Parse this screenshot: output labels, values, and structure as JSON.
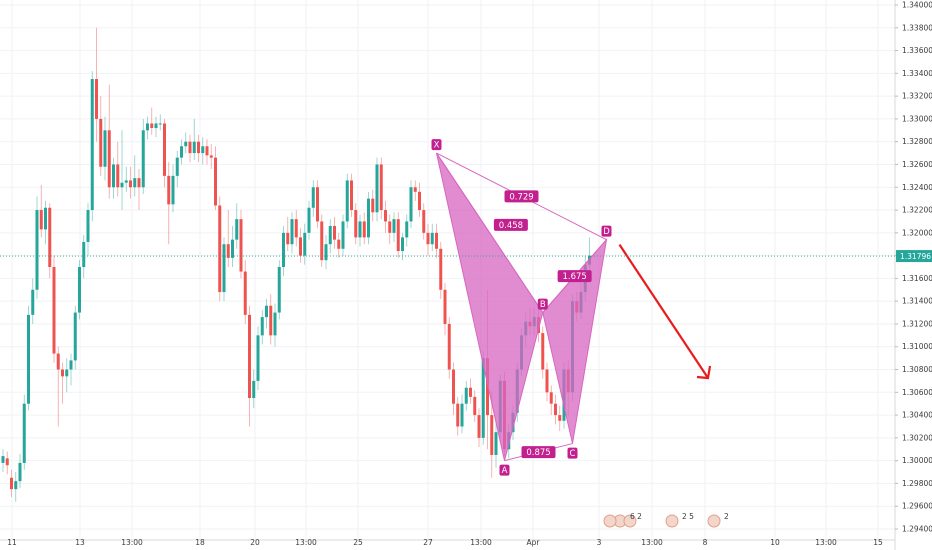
{
  "chart_data": {
    "type": "candlestick",
    "ylim": [
      1.294,
      1.34
    ],
    "y_ticks": [
      "1.34000",
      "1.33800",
      "1.33600",
      "1.33400",
      "1.33200",
      "1.33000",
      "1.32800",
      "1.32600",
      "1.32400",
      "1.32200",
      "1.32000",
      "1.31800",
      "1.31600",
      "1.31400",
      "1.31200",
      "1.31000",
      "1.30800",
      "1.30600",
      "1.30400",
      "1.30200",
      "1.30000",
      "1.29800",
      "1.29600",
      "1.29400"
    ],
    "x_ticks": [
      "11",
      "13",
      "13:00",
      "18",
      "20",
      "13:00",
      "25",
      "27",
      "13:00",
      "Apr",
      "3",
      "13:00",
      "8",
      "10",
      "13:00",
      "15"
    ],
    "current_price": "1.31796",
    "grid": true,
    "colors": {
      "up": "#26a69a",
      "down": "#ef5350",
      "pattern": "#d766c0",
      "label_bg": "#c2208f",
      "arrow": "#e81c1c",
      "price_line": "#26a69a"
    },
    "pattern_points": [
      {
        "label": "X",
        "index": 102,
        "price": 1.327
      },
      {
        "label": "A",
        "index": 118,
        "price": 1.3
      },
      {
        "label": "B",
        "index": 127,
        "price": 1.313
      },
      {
        "label": "C",
        "index": 134,
        "price": 1.3015
      },
      {
        "label": "D",
        "index": 142,
        "price": 1.3194
      }
    ],
    "ratios": [
      "0.729",
      "0.458",
      "1.675",
      "0.875"
    ],
    "event_badges": [
      "6 2",
      "2 5",
      "2"
    ],
    "candles": [
      {
        "o": 1.2998,
        "c": 1.3004,
        "h": 1.301,
        "l": 1.299
      },
      {
        "o": 1.3002,
        "c": 1.2996,
        "h": 1.3008,
        "l": 1.2988
      },
      {
        "o": 1.2985,
        "c": 1.2975,
        "h": 1.2992,
        "l": 1.2968
      },
      {
        "o": 1.2975,
        "c": 1.2982,
        "h": 1.299,
        "l": 1.2964
      },
      {
        "o": 1.2982,
        "c": 1.2998,
        "h": 1.3006,
        "l": 1.2976
      },
      {
        "o": 1.2998,
        "c": 1.305,
        "h": 1.3058,
        "l": 1.2992
      },
      {
        "o": 1.305,
        "c": 1.3128,
        "h": 1.3136,
        "l": 1.3044
      },
      {
        "o": 1.3128,
        "c": 1.315,
        "h": 1.316,
        "l": 1.312
      },
      {
        "o": 1.315,
        "c": 1.322,
        "h": 1.3232,
        "l": 1.3142
      },
      {
        "o": 1.322,
        "c": 1.3203,
        "h": 1.3242,
        "l": 1.3196
      },
      {
        "o": 1.3203,
        "c": 1.3222,
        "h": 1.3228,
        "l": 1.319
      },
      {
        "o": 1.3222,
        "c": 1.317,
        "h": 1.3226,
        "l": 1.316
      },
      {
        "o": 1.317,
        "c": 1.3094,
        "h": 1.318,
        "l": 1.3086
      },
      {
        "o": 1.3094,
        "c": 1.308,
        "h": 1.31,
        "l": 1.303
      },
      {
        "o": 1.308,
        "c": 1.3074,
        "h": 1.3086,
        "l": 1.305
      },
      {
        "o": 1.3074,
        "c": 1.308,
        "h": 1.309,
        "l": 1.306
      },
      {
        "o": 1.308,
        "c": 1.3088,
        "h": 1.3094,
        "l": 1.3066
      },
      {
        "o": 1.3088,
        "c": 1.313,
        "h": 1.3136,
        "l": 1.308
      },
      {
        "o": 1.313,
        "c": 1.317,
        "h": 1.3176,
        "l": 1.3124
      },
      {
        "o": 1.317,
        "c": 1.3192,
        "h": 1.3198,
        "l": 1.316
      },
      {
        "o": 1.3192,
        "c": 1.322,
        "h": 1.3226,
        "l": 1.318
      },
      {
        "o": 1.322,
        "c": 1.3335,
        "h": 1.3342,
        "l": 1.321
      },
      {
        "o": 1.3335,
        "c": 1.33,
        "h": 1.338,
        "l": 1.328
      },
      {
        "o": 1.33,
        "c": 1.3258,
        "h": 1.332,
        "l": 1.325
      },
      {
        "o": 1.3258,
        "c": 1.329,
        "h": 1.3302,
        "l": 1.3246
      },
      {
        "o": 1.329,
        "c": 1.324,
        "h": 1.333,
        "l": 1.323
      },
      {
        "o": 1.324,
        "c": 1.326,
        "h": 1.3266,
        "l": 1.323
      },
      {
        "o": 1.326,
        "c": 1.324,
        "h": 1.328,
        "l": 1.3232
      },
      {
        "o": 1.324,
        "c": 1.3244,
        "h": 1.329,
        "l": 1.322
      },
      {
        "o": 1.3244,
        "c": 1.3246,
        "h": 1.3258,
        "l": 1.3236
      },
      {
        "o": 1.3246,
        "c": 1.324,
        "h": 1.3258,
        "l": 1.323
      },
      {
        "o": 1.324,
        "c": 1.3248,
        "h": 1.3268,
        "l": 1.3232
      },
      {
        "o": 1.3248,
        "c": 1.324,
        "h": 1.3256,
        "l": 1.322
      },
      {
        "o": 1.324,
        "c": 1.329,
        "h": 1.33,
        "l": 1.3234
      },
      {
        "o": 1.329,
        "c": 1.3296,
        "h": 1.3302,
        "l": 1.3282
      },
      {
        "o": 1.3296,
        "c": 1.3292,
        "h": 1.331,
        "l": 1.3286
      },
      {
        "o": 1.3292,
        "c": 1.3296,
        "h": 1.3302,
        "l": 1.3284
      },
      {
        "o": 1.3296,
        "c": 1.3296,
        "h": 1.3304,
        "l": 1.329
      },
      {
        "o": 1.3296,
        "c": 1.325,
        "h": 1.33,
        "l": 1.324
      },
      {
        "o": 1.325,
        "c": 1.3225,
        "h": 1.3262,
        "l": 1.319
      },
      {
        "o": 1.3225,
        "c": 1.325,
        "h": 1.326,
        "l": 1.3218
      },
      {
        "o": 1.325,
        "c": 1.3266,
        "h": 1.3272,
        "l": 1.324
      },
      {
        "o": 1.3266,
        "c": 1.3276,
        "h": 1.3282,
        "l": 1.326
      },
      {
        "o": 1.3276,
        "c": 1.328,
        "h": 1.3288,
        "l": 1.327
      },
      {
        "o": 1.328,
        "c": 1.327,
        "h": 1.3286,
        "l": 1.3262
      },
      {
        "o": 1.327,
        "c": 1.328,
        "h": 1.33,
        "l": 1.3264
      },
      {
        "o": 1.328,
        "c": 1.327,
        "h": 1.3286,
        "l": 1.3262
      },
      {
        "o": 1.327,
        "c": 1.3276,
        "h": 1.3284,
        "l": 1.326
      },
      {
        "o": 1.3276,
        "c": 1.3268,
        "h": 1.3282,
        "l": 1.326
      },
      {
        "o": 1.3268,
        "c": 1.3266,
        "h": 1.3278,
        "l": 1.3256
      },
      {
        "o": 1.3266,
        "c": 1.3224,
        "h": 1.3276,
        "l": 1.322
      },
      {
        "o": 1.3224,
        "c": 1.3148,
        "h": 1.3232,
        "l": 1.314
      },
      {
        "o": 1.3148,
        "c": 1.319,
        "h": 1.3196,
        "l": 1.314
      },
      {
        "o": 1.319,
        "c": 1.3178,
        "h": 1.322,
        "l": 1.317
      },
      {
        "o": 1.3178,
        "c": 1.3194,
        "h": 1.3206,
        "l": 1.317
      },
      {
        "o": 1.3194,
        "c": 1.3212,
        "h": 1.3226,
        "l": 1.3186
      },
      {
        "o": 1.3212,
        "c": 1.3166,
        "h": 1.322,
        "l": 1.316
      },
      {
        "o": 1.3166,
        "c": 1.3128,
        "h": 1.3176,
        "l": 1.312
      },
      {
        "o": 1.3128,
        "c": 1.3055,
        "h": 1.3136,
        "l": 1.303
      },
      {
        "o": 1.3055,
        "c": 1.307,
        "h": 1.308,
        "l": 1.3046
      },
      {
        "o": 1.307,
        "c": 1.311,
        "h": 1.3118,
        "l": 1.3062
      },
      {
        "o": 1.311,
        "c": 1.3126,
        "h": 1.3132,
        "l": 1.3102
      },
      {
        "o": 1.3126,
        "c": 1.3136,
        "h": 1.3142,
        "l": 1.3116
      },
      {
        "o": 1.3136,
        "c": 1.311,
        "h": 1.3146,
        "l": 1.3102
      },
      {
        "o": 1.311,
        "c": 1.313,
        "h": 1.3138,
        "l": 1.31
      },
      {
        "o": 1.313,
        "c": 1.317,
        "h": 1.3176,
        "l": 1.3124
      },
      {
        "o": 1.317,
        "c": 1.32,
        "h": 1.3206,
        "l": 1.3162
      },
      {
        "o": 1.32,
        "c": 1.319,
        "h": 1.3214,
        "l": 1.3184
      },
      {
        "o": 1.319,
        "c": 1.3212,
        "h": 1.3218,
        "l": 1.3182
      },
      {
        "o": 1.3212,
        "c": 1.3196,
        "h": 1.322,
        "l": 1.3188
      },
      {
        "o": 1.3196,
        "c": 1.318,
        "h": 1.3204,
        "l": 1.3174
      },
      {
        "o": 1.318,
        "c": 1.32,
        "h": 1.3208,
        "l": 1.3172
      },
      {
        "o": 1.32,
        "c": 1.3222,
        "h": 1.3228,
        "l": 1.3194
      },
      {
        "o": 1.3222,
        "c": 1.324,
        "h": 1.3246,
        "l": 1.3214
      },
      {
        "o": 1.324,
        "c": 1.321,
        "h": 1.3246,
        "l": 1.3204
      },
      {
        "o": 1.321,
        "c": 1.3176,
        "h": 1.3216,
        "l": 1.317
      },
      {
        "o": 1.3176,
        "c": 1.319,
        "h": 1.3198,
        "l": 1.3168
      },
      {
        "o": 1.319,
        "c": 1.3206,
        "h": 1.3212,
        "l": 1.3182
      },
      {
        "o": 1.3206,
        "c": 1.3194,
        "h": 1.3214,
        "l": 1.3186
      },
      {
        "o": 1.3194,
        "c": 1.3186,
        "h": 1.32,
        "l": 1.3178
      },
      {
        "o": 1.3186,
        "c": 1.321,
        "h": 1.3216,
        "l": 1.318
      },
      {
        "o": 1.321,
        "c": 1.3246,
        "h": 1.3252,
        "l": 1.3204
      },
      {
        "o": 1.3246,
        "c": 1.322,
        "h": 1.3252,
        "l": 1.3214
      },
      {
        "o": 1.322,
        "c": 1.3196,
        "h": 1.3226,
        "l": 1.319
      },
      {
        "o": 1.3196,
        "c": 1.321,
        "h": 1.3216,
        "l": 1.3188
      },
      {
        "o": 1.321,
        "c": 1.3196,
        "h": 1.3218,
        "l": 1.319
      },
      {
        "o": 1.3196,
        "c": 1.323,
        "h": 1.3236,
        "l": 1.319
      },
      {
        "o": 1.323,
        "c": 1.3218,
        "h": 1.3238,
        "l": 1.321
      },
      {
        "o": 1.3218,
        "c": 1.326,
        "h": 1.3266,
        "l": 1.321
      },
      {
        "o": 1.326,
        "c": 1.322,
        "h": 1.3266,
        "l": 1.3212
      },
      {
        "o": 1.322,
        "c": 1.321,
        "h": 1.3228,
        "l": 1.32
      },
      {
        "o": 1.321,
        "c": 1.32,
        "h": 1.3216,
        "l": 1.319
      },
      {
        "o": 1.32,
        "c": 1.3212,
        "h": 1.3218,
        "l": 1.3192
      },
      {
        "o": 1.3212,
        "c": 1.3184,
        "h": 1.3218,
        "l": 1.3178
      },
      {
        "o": 1.3184,
        "c": 1.3196,
        "h": 1.32,
        "l": 1.3176
      },
      {
        "o": 1.3196,
        "c": 1.321,
        "h": 1.3216,
        "l": 1.3188
      },
      {
        "o": 1.321,
        "c": 1.324,
        "h": 1.3246,
        "l": 1.3204
      },
      {
        "o": 1.324,
        "c": 1.3236,
        "h": 1.3246,
        "l": 1.3228
      },
      {
        "o": 1.3236,
        "c": 1.322,
        "h": 1.3244,
        "l": 1.3214
      },
      {
        "o": 1.322,
        "c": 1.32,
        "h": 1.3226,
        "l": 1.3194
      },
      {
        "o": 1.32,
        "c": 1.319,
        "h": 1.3208,
        "l": 1.318
      },
      {
        "o": 1.319,
        "c": 1.32,
        "h": 1.3208,
        "l": 1.3184
      },
      {
        "o": 1.32,
        "c": 1.3186,
        "h": 1.3208,
        "l": 1.3178
      },
      {
        "o": 1.3186,
        "c": 1.315,
        "h": 1.3192,
        "l": 1.3142
      },
      {
        "o": 1.315,
        "c": 1.312,
        "h": 1.3156,
        "l": 1.311
      },
      {
        "o": 1.312,
        "c": 1.308,
        "h": 1.3126,
        "l": 1.3072
      },
      {
        "o": 1.308,
        "c": 1.305,
        "h": 1.3086,
        "l": 1.304
      },
      {
        "o": 1.305,
        "c": 1.303,
        "h": 1.3056,
        "l": 1.3022
      },
      {
        "o": 1.303,
        "c": 1.305,
        "h": 1.3058,
        "l": 1.3024
      },
      {
        "o": 1.305,
        "c": 1.3064,
        "h": 1.307,
        "l": 1.3044
      },
      {
        "o": 1.3064,
        "c": 1.3056,
        "h": 1.3072,
        "l": 1.305
      },
      {
        "o": 1.3056,
        "c": 1.304,
        "h": 1.3062,
        "l": 1.3034
      },
      {
        "o": 1.304,
        "c": 1.302,
        "h": 1.3046,
        "l": 1.3012
      },
      {
        "o": 1.302,
        "c": 1.309,
        "h": 1.3096,
        "l": 1.3014
      },
      {
        "o": 1.309,
        "c": 1.304,
        "h": 1.315,
        "l": 1.301
      },
      {
        "o": 1.304,
        "c": 1.3005,
        "h": 1.306,
        "l": 1.2985
      },
      {
        "o": 1.3005,
        "c": 1.3025,
        "h": 1.3034,
        "l": 1.2994
      },
      {
        "o": 1.3025,
        "c": 1.307,
        "h": 1.3076,
        "l": 1.3016
      },
      {
        "o": 1.307,
        "c": 1.301,
        "h": 1.3078,
        "l": 1.3004
      },
      {
        "o": 1.301,
        "c": 1.3025,
        "h": 1.3032,
        "l": 1.3002
      },
      {
        "o": 1.3025,
        "c": 1.3042,
        "h": 1.3048,
        "l": 1.3018
      },
      {
        "o": 1.3042,
        "c": 1.308,
        "h": 1.3086,
        "l": 1.3034
      },
      {
        "o": 1.308,
        "c": 1.311,
        "h": 1.3116,
        "l": 1.3074
      },
      {
        "o": 1.311,
        "c": 1.3122,
        "h": 1.313,
        "l": 1.31
      },
      {
        "o": 1.3122,
        "c": 1.3118,
        "h": 1.3134,
        "l": 1.311
      },
      {
        "o": 1.3118,
        "c": 1.3126,
        "h": 1.3134,
        "l": 1.311
      },
      {
        "o": 1.3126,
        "c": 1.3112,
        "h": 1.3132,
        "l": 1.3104
      },
      {
        "o": 1.3112,
        "c": 1.308,
        "h": 1.3118,
        "l": 1.3072
      },
      {
        "o": 1.308,
        "c": 1.306,
        "h": 1.3086,
        "l": 1.3052
      },
      {
        "o": 1.306,
        "c": 1.305,
        "h": 1.3066,
        "l": 1.304
      },
      {
        "o": 1.305,
        "c": 1.304,
        "h": 1.3058,
        "l": 1.3032
      },
      {
        "o": 1.304,
        "c": 1.3035,
        "h": 1.3048,
        "l": 1.3026
      },
      {
        "o": 1.3035,
        "c": 1.308,
        "h": 1.3086,
        "l": 1.3028
      },
      {
        "o": 1.308,
        "c": 1.306,
        "h": 1.3088,
        "l": 1.304
      },
      {
        "o": 1.306,
        "c": 1.314,
        "h": 1.3146,
        "l": 1.3052
      },
      {
        "o": 1.314,
        "c": 1.313,
        "h": 1.3148,
        "l": 1.3122
      },
      {
        "o": 1.313,
        "c": 1.3148,
        "h": 1.3156,
        "l": 1.3124
      },
      {
        "o": 1.3148,
        "c": 1.3172,
        "h": 1.318,
        "l": 1.314
      },
      {
        "o": 1.3172,
        "c": 1.318,
        "h": 1.3196,
        "l": 1.3166
      }
    ]
  }
}
